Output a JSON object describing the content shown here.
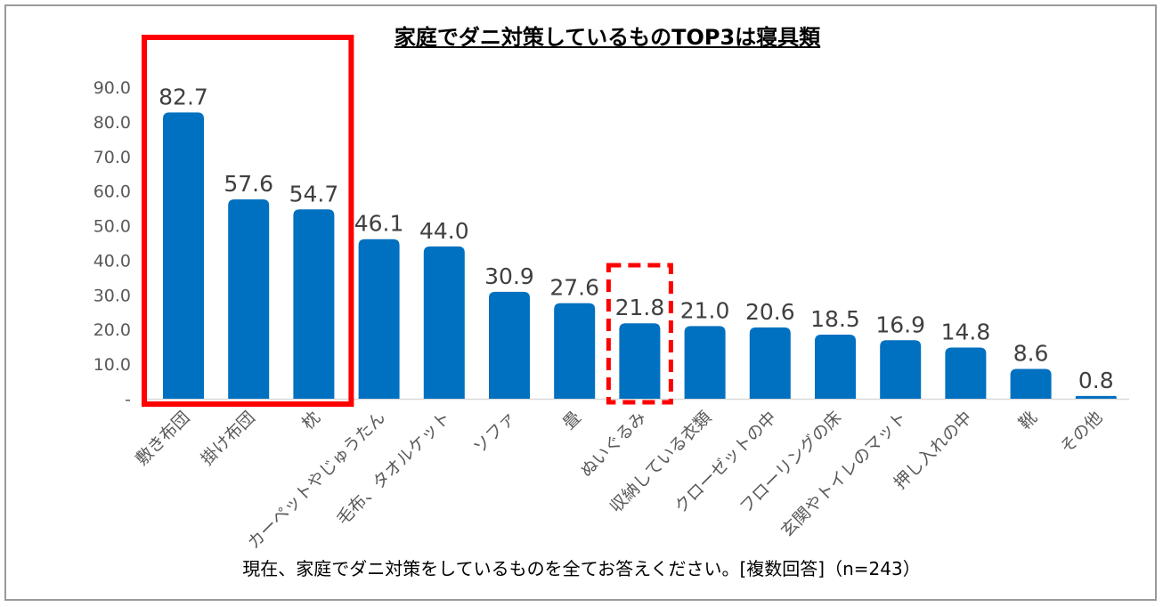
{
  "chart_data": {
    "type": "bar",
    "title": "家庭でダニ対策しているものTOP3は寝具類",
    "categories": [
      "敷き布団",
      "掛け布団",
      "枕",
      "カーペットやじゅうたん",
      "毛布、タオルケット",
      "ソファ",
      "畳",
      "ぬいぐるみ",
      "収納している衣類",
      "クローゼットの中",
      "フローリングの床",
      "玄関やトイレのマット",
      "押し入れの中",
      "靴",
      "その他"
    ],
    "values": [
      82.7,
      57.6,
      54.7,
      46.1,
      44.0,
      30.9,
      27.6,
      21.8,
      21.0,
      20.6,
      18.5,
      16.9,
      14.8,
      8.6,
      0.8
    ],
    "value_labels": [
      "82.7",
      "57.6",
      "54.7",
      "46.1",
      "44.0",
      "30.9",
      "27.6",
      "21.8",
      "21.0",
      "20.6",
      "18.5",
      "16.9",
      "14.8",
      "8.6",
      "0.8"
    ],
    "yticks": [
      "-",
      "10.0",
      "20.0",
      "30.0",
      "40.0",
      "50.0",
      "60.0",
      "70.0",
      "80.0",
      "90.0"
    ],
    "ylim": [
      0,
      90
    ],
    "bar_color": "#0070c0",
    "highlight_color": "#ff0000",
    "highlight_solid_range": [
      0,
      2
    ],
    "highlight_dashed_index": 7,
    "grid": false,
    "footer": "現在、家庭でダニ対策をしているものを全てお答えください。[複数回答]（n=243）"
  }
}
